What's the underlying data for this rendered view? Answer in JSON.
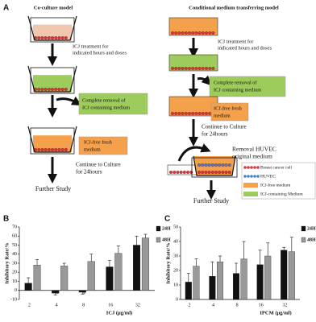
{
  "panels": [
    "A",
    "B",
    "C"
  ],
  "diagram": {
    "left_title": "Co-culture model",
    "right_title": "Conditional medium transferring model",
    "left_treatment": [
      "ICJ treatment  for",
      "indicated hours and doses"
    ],
    "left_removal": [
      "Complete removal of",
      "ICJ containing medium"
    ],
    "left_fresh": [
      "ICJ-free fresh",
      "medium"
    ],
    "left_continue": [
      "Continue to Culture",
      "for 24hours"
    ],
    "left_further": "Further Study",
    "right_treatment": [
      "ICJ treatment  for",
      "indicated hours and doses"
    ],
    "right_removal": [
      "Complete removal of",
      "ICJ containing medium"
    ],
    "right_fresh": [
      "ICJ-free fresh",
      "medium"
    ],
    "right_continue": [
      "Continue to Culture",
      "for 24hours"
    ],
    "right_huvec": [
      "Removal HUVEC",
      "original medium"
    ],
    "right_further": "Further Study",
    "legend": [
      "Breast cancer cell",
      "HUVEC",
      "ICJ-free medium",
      "ICJ-containing Medium"
    ]
  },
  "chart_data": [
    {
      "type": "bar",
      "ylabel": "Inhibitory Rate/%",
      "xlabel": "ICJ (μg/ml)",
      "categories": [
        "2",
        "4",
        "8",
        "16",
        "32"
      ],
      "series": [
        {
          "name": "24H",
          "color": "#111111",
          "values": [
            8,
            -3,
            -2,
            26,
            50
          ],
          "errors": [
            6,
            2,
            2,
            7,
            10
          ]
        },
        {
          "name": "48H",
          "color": "#999999",
          "values": [
            28,
            27,
            32,
            41,
            58
          ],
          "errors": [
            6,
            3,
            8,
            8,
            4
          ]
        }
      ],
      "annotations": [
        "*",
        "*"
      ],
      "ylim": [
        -10,
        70
      ],
      "yticks": [
        -10,
        0,
        10,
        20,
        30,
        40,
        50,
        60,
        70
      ],
      "legend": "upper right"
    },
    {
      "type": "bar",
      "ylabel": "Inhibitory  Rate/%",
      "xlabel": "IPCM (μg/ml)",
      "categories": [
        "2",
        "4",
        "8",
        "16",
        "32"
      ],
      "series": [
        {
          "name": "24H",
          "color": "#111111",
          "values": [
            12,
            16,
            18,
            24,
            34
          ],
          "errors": [
            6,
            10,
            7,
            10,
            2
          ]
        },
        {
          "name": "48H",
          "color": "#999999",
          "values": [
            23,
            26,
            28,
            30,
            33
          ],
          "errors": [
            5,
            4,
            12,
            9,
            10
          ]
        }
      ],
      "ylim": [
        0,
        50
      ],
      "yticks": [
        0,
        10,
        20,
        30,
        40,
        50
      ],
      "legend": "upper right"
    }
  ]
}
